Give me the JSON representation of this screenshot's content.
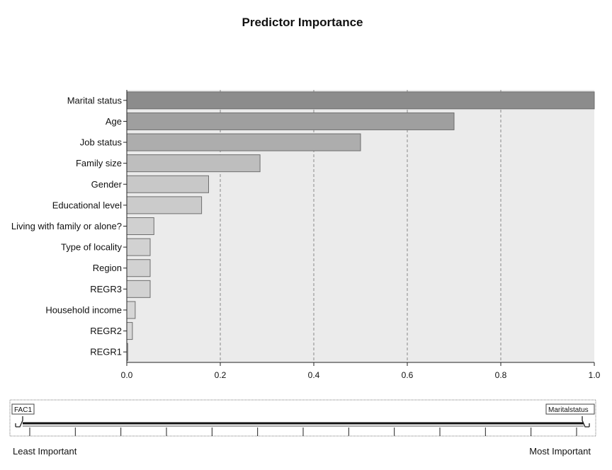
{
  "chart_data": {
    "type": "bar",
    "orientation": "horizontal",
    "title": "Predictor Importance",
    "xlabel": "",
    "ylabel": "",
    "xlim": [
      0,
      1.0
    ],
    "grid": "vertical-dashed",
    "categories": [
      "Marital status",
      "Age",
      "Job status",
      "Family size",
      "Gender",
      "Educational level",
      "Living with family or alone?",
      "Type of locality",
      "Region",
      "REGR3",
      "Household income",
      "REGR2",
      "REGR1"
    ],
    "values": [
      1.0,
      0.7,
      0.5,
      0.285,
      0.175,
      0.16,
      0.058,
      0.05,
      0.05,
      0.05,
      0.018,
      0.012,
      0.002
    ],
    "colors": [
      "#8c8c8c",
      "#9f9f9f",
      "#adadad",
      "#bebebe",
      "#c8c8c8",
      "#cbcbcb",
      "#d0d0d0",
      "#d2d2d2",
      "#d2d2d2",
      "#d2d2d2",
      "#d6d6d6",
      "#d8d8d8",
      "#dadada"
    ],
    "xticks": [
      "0.0",
      "0.2",
      "0.4",
      "0.6",
      "0.8",
      "1.0"
    ],
    "xtick_values": [
      0,
      0.2,
      0.4,
      0.6,
      0.8,
      1.0
    ]
  },
  "slider": {
    "left_thumb_label": "FAC1",
    "right_thumb_label": "Maritalstatus",
    "least_label": "Least Important",
    "most_label": "Most Important",
    "tick_count": 13
  },
  "colors": {
    "plot_background": "#ebebeb",
    "bar_stroke": "#6e6e6e",
    "grid": "#888888"
  }
}
